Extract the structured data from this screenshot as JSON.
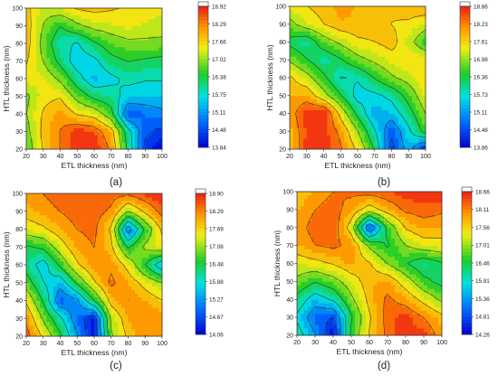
{
  "chart_data": [
    {
      "type": "heatmap",
      "panel_label": "(a)",
      "xlabel": "ETL thickness (nm)",
      "ylabel": "HTL thickness (nm)",
      "x": [
        20,
        30,
        40,
        50,
        60,
        70,
        80,
        90,
        100
      ],
      "y": [
        20,
        30,
        40,
        50,
        60,
        70,
        80,
        90,
        100
      ],
      "xlim": [
        20,
        100
      ],
      "ylim": [
        20,
        100
      ],
      "colorbar_ticks": [
        "18.92",
        "18.29",
        "17.66",
        "17.02",
        "16.38",
        "15.75",
        "15.11",
        "14.48",
        "13.84"
      ],
      "zlim": [
        13.84,
        18.92
      ],
      "z": [
        [
          16.6,
          17.7,
          18.3,
          18.9,
          18.9,
          18.2,
          16.2,
          14.3,
          13.9
        ],
        [
          16.8,
          17.8,
          18.3,
          18.8,
          18.6,
          17.9,
          16.0,
          14.6,
          14.3
        ],
        [
          17.0,
          17.7,
          18.1,
          17.6,
          17.4,
          16.6,
          14.5,
          14.8,
          15.0
        ],
        [
          16.9,
          17.5,
          17.6,
          16.8,
          16.2,
          16.0,
          15.5,
          15.4,
          15.4
        ],
        [
          17.5,
          17.4,
          16.9,
          16.0,
          15.3,
          15.6,
          15.9,
          15.8,
          15.8
        ],
        [
          17.7,
          17.0,
          16.2,
          15.4,
          15.6,
          16.2,
          16.4,
          16.3,
          16.2
        ],
        [
          17.9,
          16.8,
          15.9,
          15.7,
          16.3,
          16.7,
          16.9,
          16.9,
          16.9
        ],
        [
          17.9,
          17.0,
          16.4,
          16.9,
          17.2,
          17.3,
          17.4,
          17.3,
          17.2
        ],
        [
          17.8,
          17.2,
          17.4,
          17.7,
          17.8,
          17.7,
          17.6,
          17.5,
          17.4
        ]
      ]
    },
    {
      "type": "heatmap",
      "panel_label": "(b)",
      "xlabel": "ETL thickness (nm)",
      "ylabel": "HTL thickness (nm)",
      "x": [
        20,
        30,
        40,
        50,
        60,
        70,
        80,
        90,
        100
      ],
      "y": [
        20,
        30,
        40,
        50,
        60,
        70,
        80,
        90,
        100
      ],
      "xlim": [
        20,
        100
      ],
      "ylim": [
        20,
        100
      ],
      "colorbar_ticks": [
        "18.86",
        "18.23",
        "17.61",
        "16.98",
        "16.36",
        "15.73",
        "15.11",
        "14.48",
        "13.86"
      ],
      "zlim": [
        13.86,
        18.86
      ],
      "z": [
        [
          17.6,
          18.7,
          18.8,
          18.3,
          17.5,
          16.3,
          14.3,
          15.4,
          14.1
        ],
        [
          17.8,
          18.6,
          18.7,
          18.1,
          17.0,
          15.8,
          14.6,
          15.6,
          16.6
        ],
        [
          18.0,
          18.7,
          18.9,
          17.4,
          16.2,
          15.2,
          15.4,
          16.1,
          17.0
        ],
        [
          17.9,
          18.0,
          17.2,
          16.4,
          15.5,
          15.6,
          15.9,
          16.6,
          17.4
        ],
        [
          17.7,
          17.2,
          16.5,
          15.7,
          15.8,
          16.4,
          16.9,
          17.2,
          17.6
        ],
        [
          16.9,
          16.4,
          15.9,
          16.3,
          16.8,
          17.1,
          17.4,
          17.6,
          17.5
        ],
        [
          16.2,
          15.9,
          16.7,
          17.1,
          17.5,
          17.6,
          17.8,
          17.2,
          16.5
        ],
        [
          16.8,
          17.3,
          17.6,
          17.9,
          17.9,
          17.9,
          17.6,
          17.5,
          17.2
        ],
        [
          17.4,
          17.6,
          17.8,
          18.0,
          17.9,
          17.8,
          17.7,
          17.9,
          18.0
        ]
      ]
    },
    {
      "type": "heatmap",
      "panel_label": "(c)",
      "xlabel": "ETL thickness (nm)",
      "ylabel": "HTL thickness (nm)",
      "x": [
        20,
        30,
        40,
        50,
        60,
        70,
        80,
        90,
        100
      ],
      "y": [
        20,
        30,
        40,
        50,
        60,
        70,
        80,
        90,
        100
      ],
      "xlim": [
        20,
        100
      ],
      "ylim": [
        20,
        100
      ],
      "colorbar_ticks": [
        "18.90",
        "18.29",
        "17.69",
        "17.08",
        "16.48",
        "15.88",
        "15.27",
        "14.67",
        "14.06"
      ],
      "zlim": [
        14.06,
        18.9
      ],
      "z": [
        [
          18.5,
          17.6,
          16.6,
          15.3,
          14.1,
          17.0,
          17.8,
          18.3,
          18.2
        ],
        [
          18.2,
          17.0,
          16.0,
          14.9,
          14.3,
          17.2,
          18.0,
          18.2,
          18.2
        ],
        [
          17.6,
          16.4,
          14.8,
          15.2,
          16.5,
          17.9,
          18.3,
          18.0,
          17.7
        ],
        [
          16.8,
          15.9,
          15.5,
          16.6,
          17.6,
          18.4,
          18.0,
          17.5,
          17.1
        ],
        [
          16.2,
          15.6,
          16.6,
          17.6,
          18.2,
          18.2,
          17.5,
          16.5,
          15.4
        ],
        [
          16.4,
          16.6,
          17.4,
          18.1,
          18.3,
          17.8,
          16.4,
          17.2,
          17.5
        ],
        [
          17.4,
          17.6,
          18.0,
          18.3,
          18.4,
          17.6,
          14.9,
          16.6,
          17.8
        ],
        [
          17.9,
          18.1,
          18.3,
          18.5,
          18.5,
          18.2,
          17.1,
          17.8,
          18.5
        ],
        [
          18.1,
          18.3,
          18.5,
          18.6,
          18.6,
          18.5,
          18.4,
          18.7,
          18.9
        ]
      ]
    },
    {
      "type": "heatmap",
      "panel_label": "(d)",
      "xlabel": "ETL thickness (nm)",
      "ylabel": "HTL thickness (nm)",
      "x": [
        20,
        30,
        40,
        50,
        60,
        70,
        80,
        90,
        100
      ],
      "y": [
        20,
        30,
        40,
        50,
        60,
        70,
        80,
        90,
        100
      ],
      "xlim": [
        20,
        100
      ],
      "ylim": [
        20,
        100
      ],
      "colorbar_ticks": [
        "18.66",
        "18.11",
        "17.56",
        "17.01",
        "16.46",
        "15.91",
        "15.36",
        "14.81",
        "14.26"
      ],
      "zlim": [
        14.26,
        18.66
      ],
      "z": [
        [
          16.2,
          15.4,
          14.3,
          16.6,
          17.6,
          18.2,
          18.6,
          18.5,
          17.9
        ],
        [
          15.8,
          15.0,
          14.8,
          16.4,
          17.5,
          18.3,
          18.5,
          18.1,
          17.7
        ],
        [
          16.3,
          15.6,
          16.0,
          16.9,
          17.7,
          18.2,
          17.9,
          17.4,
          16.9
        ],
        [
          16.9,
          16.5,
          16.8,
          17.3,
          17.8,
          17.9,
          17.3,
          16.6,
          16.3
        ],
        [
          17.3,
          17.4,
          17.6,
          17.9,
          17.6,
          17.0,
          16.5,
          16.1,
          16.4
        ],
        [
          17.8,
          18.1,
          18.2,
          18.0,
          16.9,
          16.4,
          17.0,
          17.3,
          17.4
        ],
        [
          17.9,
          18.3,
          18.4,
          17.3,
          14.8,
          16.6,
          17.6,
          17.9,
          17.8
        ],
        [
          17.8,
          18.1,
          18.3,
          17.9,
          17.3,
          17.8,
          18.2,
          18.3,
          18.2
        ],
        [
          17.6,
          17.9,
          18.1,
          18.2,
          18.3,
          18.4,
          18.5,
          18.6,
          18.6
        ]
      ]
    }
  ]
}
